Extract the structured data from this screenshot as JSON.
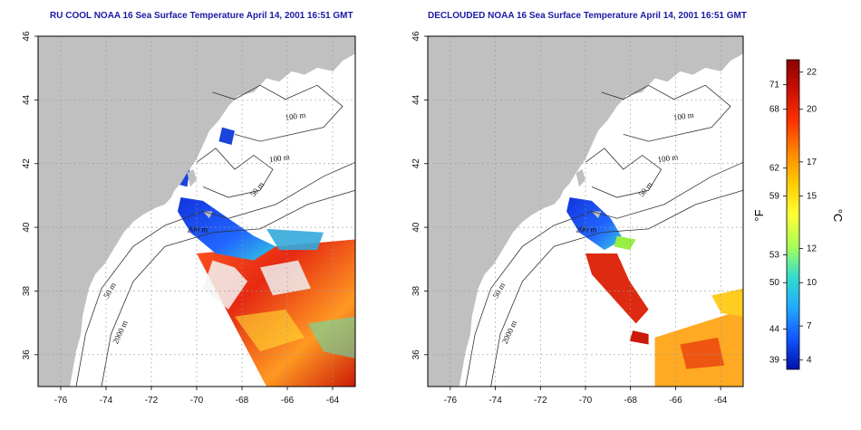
{
  "maps": [
    {
      "title": "RU COOL NOAA 16 Sea Surface Temperature April 14, 2001 16:51 GMT",
      "x_ticks": [
        "-76",
        "-74",
        "-72",
        "-70",
        "-68",
        "-66",
        "-64"
      ],
      "y_ticks": [
        "46",
        "44",
        "42",
        "40",
        "38",
        "36"
      ],
      "contour_labels": [
        "100 m",
        "100 m",
        "50 m",
        "200 m",
        "50 m",
        "2000 m"
      ]
    },
    {
      "title": "DECLOUDED NOAA 16 Sea Surface Temperature April 14, 2001 16:51 GMT",
      "x_ticks": [
        "-76",
        "-74",
        "-72",
        "-70",
        "-68",
        "-66",
        "-64"
      ],
      "y_ticks": [
        "46",
        "44",
        "42",
        "40",
        "38",
        "36"
      ],
      "contour_labels": [
        "100 m",
        "100 m",
        "50 m",
        "200 m",
        "50 m",
        "2000 m"
      ]
    }
  ],
  "colorbar": {
    "f_unit": "°F",
    "c_unit": "°C",
    "f_ticks": [
      {
        "label": "71",
        "t": 0.08
      },
      {
        "label": "68",
        "t": 0.16
      },
      {
        "label": "62",
        "t": 0.35
      },
      {
        "label": "59",
        "t": 0.44
      },
      {
        "label": "53",
        "t": 0.63
      },
      {
        "label": "50",
        "t": 0.72
      },
      {
        "label": "44",
        "t": 0.87
      },
      {
        "label": "39",
        "t": 0.97
      }
    ],
    "c_ticks": [
      {
        "label": "22",
        "t": 0.04
      },
      {
        "label": "20",
        "t": 0.16
      },
      {
        "label": "17",
        "t": 0.33
      },
      {
        "label": "15",
        "t": 0.44
      },
      {
        "label": "12",
        "t": 0.61
      },
      {
        "label": "10",
        "t": 0.72
      },
      {
        "label": "7",
        "t": 0.86
      },
      {
        "label": "4",
        "t": 0.97
      }
    ],
    "colors": [
      "#8b0000",
      "#cc1100",
      "#ff3300",
      "#ff8800",
      "#ffcc00",
      "#ffff33",
      "#aaff55",
      "#33ddcc",
      "#22aaff",
      "#1155ff",
      "#0011aa"
    ]
  },
  "colors": {
    "land": "#c0c0c0",
    "ocean_blank": "#ffffff",
    "cold": "#1c4fe6",
    "warm": "#d92c12",
    "title": "#1a1aa6"
  }
}
